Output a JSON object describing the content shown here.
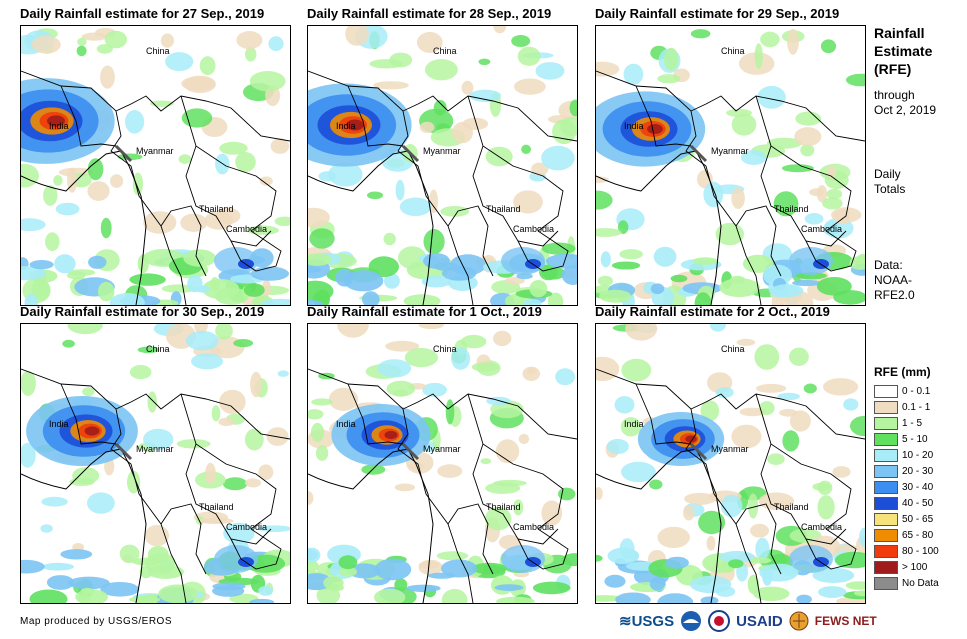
{
  "panels": [
    {
      "title": "Daily Rainfall estimate for 27 Sep., 2019",
      "intensity": 0.9
    },
    {
      "title": "Daily Rainfall estimate for 28 Sep., 2019",
      "intensity": 0.85
    },
    {
      "title": "Daily Rainfall estimate for 29 Sep., 2019",
      "intensity": 0.7
    },
    {
      "title": "Daily Rainfall estimate for 30 Sep., 2019",
      "intensity": 0.6
    },
    {
      "title": "Daily Rainfall estimate for 1 Oct., 2019",
      "intensity": 0.45
    },
    {
      "title": "Daily Rainfall estimate for 2 Oct., 2019",
      "intensity": 0.3
    }
  ],
  "map_labels": {
    "china": "China",
    "india": "India",
    "myanmar": "Myanmar",
    "thailand": "Thailand",
    "cambodia": "Cambodia"
  },
  "side": {
    "title_line1": "Rainfall",
    "title_line2": "Estimate",
    "title_line3": "(RFE)",
    "through": "through",
    "through_date": "Oct 2, 2019",
    "daily": "Daily",
    "totals": "Totals",
    "data_label": "Data:",
    "data_src1": "NOAA-",
    "data_src2": "RFE2.0"
  },
  "legend": {
    "title": "RFE (mm)",
    "items": [
      {
        "label": "0 - 0.1",
        "color": "#ffffff"
      },
      {
        "label": "0.1 - 1",
        "color": "#f0dcc0"
      },
      {
        "label": "1 - 5",
        "color": "#b5f5a0"
      },
      {
        "label": "5 - 10",
        "color": "#5fe05f"
      },
      {
        "label": "10 - 20",
        "color": "#a8ecf8"
      },
      {
        "label": "20 - 30",
        "color": "#7cc4f4"
      },
      {
        "label": "30 - 40",
        "color": "#3c8ef0"
      },
      {
        "label": "40 - 50",
        "color": "#1c4ed8"
      },
      {
        "label": "50 - 65",
        "color": "#f8e27c"
      },
      {
        "label": "65 - 80",
        "color": "#f08c00"
      },
      {
        "label": "80 - 100",
        "color": "#f03c0c"
      },
      {
        "label": "> 100",
        "color": "#a01c1c"
      },
      {
        "label": "No Data",
        "color": "#8c8c8c"
      }
    ]
  },
  "credit": "Map produced by USGS/EROS",
  "logos": {
    "usgs": "≋USGS",
    "usaid": "USAID",
    "fewsnet": "FEWS NET"
  }
}
